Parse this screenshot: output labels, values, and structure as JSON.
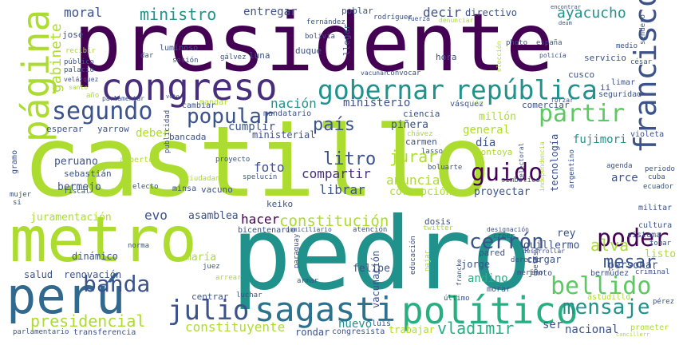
{
  "palette": {
    "dark_purple": "#440154",
    "purple": "#472d7b",
    "indigo": "#3b528b",
    "blue": "#2c728e",
    "teal": "#21918c",
    "sea": "#28ae80",
    "green": "#5ec962",
    "lime": "#addc30",
    "yellow": "#fde725"
  },
  "words": [
    {
      "text": "castillo",
      "color": "#addc30"
    },
    {
      "text": "presidente",
      "color": "#440154"
    },
    {
      "text": "pedro",
      "color": "#21918c"
    },
    {
      "text": "metro",
      "color": "#addc30"
    },
    {
      "text": "congreso",
      "color": "#472d7b"
    },
    {
      "text": "perú",
      "color": "#31688e"
    },
    {
      "text": "político",
      "color": "#28ae80"
    },
    {
      "text": "sagasti",
      "color": "#2c728e"
    },
    {
      "text": "página",
      "color": "#addc30"
    },
    {
      "text": "gobernar",
      "color": "#21918c"
    },
    {
      "text": "república",
      "color": "#21918c"
    },
    {
      "text": "francisco",
      "color": "#3b528b"
    },
    {
      "text": "segundo",
      "color": "#3b528b"
    },
    {
      "text": "bellido",
      "color": "#5ec962"
    },
    {
      "text": "poder",
      "color": "#440154"
    },
    {
      "text": "guido",
      "color": "#440154"
    },
    {
      "text": "partir",
      "color": "#5ec962"
    },
    {
      "text": "popular",
      "color": "#3b528b"
    },
    {
      "text": "banda",
      "color": "#3b528b"
    },
    {
      "text": "julio",
      "color": "#3b528b"
    },
    {
      "text": "mensaje",
      "color": "#21918c"
    },
    {
      "text": "cerrón",
      "color": "#3b528b"
    },
    {
      "text": "presidencial",
      "color": "#addc30"
    },
    {
      "text": "país",
      "color": "#3b528b"
    },
    {
      "text": "litro",
      "color": "#3b528b"
    },
    {
      "text": "mesar",
      "color": "#3b528b"
    },
    {
      "text": "vladimir",
      "color": "#28ae80"
    },
    {
      "text": "gabinete",
      "color": "#addc30"
    },
    {
      "text": "constitución",
      "color": "#addc30"
    },
    {
      "text": "alva",
      "color": "#addc30"
    },
    {
      "text": "jurar",
      "color": "#addc30"
    },
    {
      "text": "constituyente",
      "color": "#addc30"
    },
    {
      "text": "ministro",
      "color": "#21918c"
    },
    {
      "text": "moral",
      "color": "#3b528b"
    },
    {
      "text": "ayacucho",
      "color": "#21918c"
    },
    {
      "text": "decir",
      "color": "#3b528b"
    },
    {
      "text": "entregar",
      "color": "#3b528b"
    },
    {
      "text": "nación",
      "color": "#21918c"
    },
    {
      "text": "ministerio",
      "color": "#3b528b"
    },
    {
      "text": "compartir",
      "color": "#472d7b"
    },
    {
      "text": "librar",
      "color": "#3b528b"
    },
    {
      "text": "anunciar",
      "color": "#addc30"
    },
    {
      "text": "foto",
      "color": "#3b528b"
    },
    {
      "text": "hacer",
      "color": "#440154"
    },
    {
      "text": "evo",
      "color": "#3b528b"
    },
    {
      "text": "nacional",
      "color": "#3b528b"
    },
    {
      "text": "andino",
      "color": "#28ae80"
    },
    {
      "text": "fujimori",
      "color": "#21918c"
    },
    {
      "text": "general",
      "color": "#addc30"
    },
    {
      "text": "tecnología",
      "color": "#3b528b"
    },
    {
      "text": "juramentación",
      "color": "#addc30"
    },
    {
      "text": "peruano",
      "color": "#3b528b"
    },
    {
      "text": "bermejo",
      "color": "#3b528b"
    },
    {
      "text": "asamblea",
      "color": "#3b528b"
    },
    {
      "text": "nuevo",
      "color": "#21918c"
    },
    {
      "text": "trabajar",
      "color": "#addc30"
    },
    {
      "text": "rondar",
      "color": "#3b528b"
    },
    {
      "text": "corrupción",
      "color": "#addc30"
    },
    {
      "text": "proyectar",
      "color": "#3b528b"
    },
    {
      "text": "arce",
      "color": "#3b528b"
    },
    {
      "text": "día",
      "color": "#3b528b"
    },
    {
      "text": "cumplir",
      "color": "#3b528b"
    },
    {
      "text": "deber",
      "color": "#addc30"
    },
    {
      "text": "personar",
      "color": "#3b528b"
    },
    {
      "text": "guillermo",
      "color": "#3b528b"
    },
    {
      "text": "ser",
      "color": "#3b528b"
    },
    {
      "text": "cargar",
      "color": "#3b528b"
    },
    {
      "text": "rey",
      "color": "#3b528b"
    },
    {
      "text": "listo",
      "color": "#addc30"
    },
    {
      "text": "prometer",
      "color": "#addc30"
    },
    {
      "text": "salud",
      "color": "#3b528b"
    },
    {
      "text": "renovación",
      "color": "#3b528b"
    },
    {
      "text": "maría",
      "color": "#addc30"
    },
    {
      "text": "dinámico",
      "color": "#3b528b"
    },
    {
      "text": "felipe",
      "color": "#3b528b"
    },
    {
      "text": "jorge",
      "color": "#3b528b"
    },
    {
      "text": "luis",
      "color": "#3b528b"
    },
    {
      "text": "congresista",
      "color": "#3b528b"
    },
    {
      "text": "millón",
      "color": "#addc30"
    },
    {
      "text": "piñera",
      "color": "#3b528b"
    },
    {
      "text": "ciencia",
      "color": "#3b528b"
    },
    {
      "text": "carmen",
      "color": "#3b528b"
    },
    {
      "text": "montoya",
      "color": "#addc30"
    },
    {
      "text": "dosis",
      "color": "#3b528b"
    },
    {
      "text": "ministerial",
      "color": "#3b528b"
    },
    {
      "text": "bancada",
      "color": "#3b528b"
    },
    {
      "text": "yarrow",
      "color": "#3b528b"
    },
    {
      "text": "esperar",
      "color": "#3b528b"
    },
    {
      "text": "sebastián",
      "color": "#3b528b"
    },
    {
      "text": "keiko",
      "color": "#3b528b"
    },
    {
      "text": "vacuno",
      "color": "#3b528b"
    },
    {
      "text": "minsa",
      "color": "#3b528b"
    },
    {
      "text": "directivo",
      "color": "#3b528b"
    },
    {
      "text": "cusco",
      "color": "#3b528b"
    },
    {
      "text": "servicio",
      "color": "#3b528b"
    },
    {
      "text": "seguridad",
      "color": "#3b528b"
    },
    {
      "text": "limar",
      "color": "#3b528b"
    },
    {
      "text": "comerciar",
      "color": "#3b528b"
    },
    {
      "text": "hora",
      "color": "#3b528b"
    },
    {
      "text": "vásquez",
      "color": "#3b528b"
    },
    {
      "text": "duque",
      "color": "#3b528b"
    },
    {
      "text": "luna",
      "color": "#3b528b"
    },
    {
      "text": "josé",
      "color": "#3b528b"
    },
    {
      "text": "poblar",
      "color": "#3b528b"
    },
    {
      "text": "militar",
      "color": "#3b528b"
    },
    {
      "text": "cultura",
      "color": "#3b528b"
    },
    {
      "text": "bicentenario",
      "color": "#3b528b"
    },
    {
      "text": "pared",
      "color": "#3b528b"
    },
    {
      "text": "junto",
      "color": "#3b528b"
    },
    {
      "text": "astudillo",
      "color": "#addc30"
    },
    {
      "text": "llegar",
      "color": "#3b528b"
    },
    {
      "text": "alberto",
      "color": "#addc30"
    },
    {
      "text": "gramo",
      "color": "#3b528b"
    },
    {
      "text": "mandar",
      "color": "#addc30"
    },
    {
      "text": "cambiar",
      "color": "#3b528b"
    },
    {
      "text": "mandatario",
      "color": "#3b528b"
    },
    {
      "text": "ii",
      "color": "#3b528b"
    },
    {
      "text": "ecuador",
      "color": "#3b528b"
    },
    {
      "text": "argentino",
      "color": "#3b528b"
    },
    {
      "text": "violeta",
      "color": "#3b528b"
    },
    {
      "text": "agenda",
      "color": "#3b528b"
    },
    {
      "text": "periodo",
      "color": "#3b528b"
    },
    {
      "text": "cuba",
      "color": "#3b528b"
    },
    {
      "text": "sistema",
      "color": "#3b528b"
    },
    {
      "text": "tomar",
      "color": "#3b528b"
    },
    {
      "text": "criminal",
      "color": "#3b528b"
    },
    {
      "text": "bermúdez",
      "color": "#3b528b"
    },
    {
      "text": "pérez",
      "color": "#3b528b"
    },
    {
      "text": "desarrollar",
      "color": "#3b528b"
    },
    {
      "text": "creer",
      "color": "#3b528b"
    },
    {
      "text": "derecho",
      "color": "#3b528b"
    },
    {
      "text": "merino",
      "color": "#3b528b"
    },
    {
      "text": "francke",
      "color": "#3b528b"
    },
    {
      "text": "último",
      "color": "#3b528b"
    },
    {
      "text": "morar",
      "color": "#3b528b"
    },
    {
      "text": "armar",
      "color": "#3b528b"
    },
    {
      "text": "luchar",
      "color": "#3b528b"
    },
    {
      "text": "centrar",
      "color": "#3b528b"
    },
    {
      "text": "arrear",
      "color": "#addc30"
    },
    {
      "text": "juez",
      "color": "#3b528b"
    },
    {
      "text": "norma",
      "color": "#3b528b"
    },
    {
      "text": "parlamentario",
      "color": "#3b528b"
    },
    {
      "text": "transferencia",
      "color": "#3b528b"
    },
    {
      "text": "mujer",
      "color": "#3b528b"
    },
    {
      "text": "si",
      "color": "#3b528b"
    },
    {
      "text": "fiscal",
      "color": "#3b528b"
    },
    {
      "text": "electo",
      "color": "#3b528b"
    },
    {
      "text": "ciudadano",
      "color": "#addc30"
    },
    {
      "text": "proyecto",
      "color": "#3b528b"
    },
    {
      "text": "publicidad",
      "color": "#3b528b"
    },
    {
      "text": "spelucín",
      "color": "#3b528b"
    },
    {
      "text": "lasso",
      "color": "#3b528b"
    },
    {
      "text": "boluarte",
      "color": "#3b528b"
    },
    {
      "text": "simbólico",
      "color": "#3b528b"
    },
    {
      "text": "independencia",
      "color": "#addc30"
    },
    {
      "text": "electoral",
      "color": "#3b528b"
    },
    {
      "text": "chávez",
      "color": "#addc30"
    },
    {
      "text": "designación",
      "color": "#3b528b"
    },
    {
      "text": "twitter",
      "color": "#addc30"
    },
    {
      "text": "atención",
      "color": "#3b528b"
    },
    {
      "text": "domiciliario",
      "color": "#3b528b"
    },
    {
      "text": "paraguay",
      "color": "#3b528b"
    },
    {
      "text": "educación",
      "color": "#3b528b"
    },
    {
      "text": "najar",
      "color": "#addc30"
    },
    {
      "text": "betssy",
      "color": "#3b528b"
    },
    {
      "text": "vacunación",
      "color": "#3b528b"
    },
    {
      "text": "fernández",
      "color": "#3b528b"
    },
    {
      "text": "rodríguez",
      "color": "#3b528b"
    },
    {
      "text": "fuerza",
      "color": "#3b528b"
    },
    {
      "text": "denunciar",
      "color": "#addc30"
    },
    {
      "text": "encontrar",
      "color": "#3b528b"
    },
    {
      "text": "deum",
      "color": "#3b528b"
    },
    {
      "text": "españa",
      "color": "#3b528b"
    },
    {
      "text": "photo",
      "color": "#3b528b"
    },
    {
      "text": "elección",
      "color": "#addc30"
    },
    {
      "text": "policía",
      "color": "#3b528b"
    },
    {
      "text": "medio",
      "color": "#3b528b"
    },
    {
      "text": "césar",
      "color": "#3b528b"
    },
    {
      "text": "sendero",
      "color": "#3b528b"
    },
    {
      "text": "vacunar",
      "color": "#3b528b"
    },
    {
      "text": "convocar",
      "color": "#3b528b"
    },
    {
      "text": "bolivia",
      "color": "#3b528b"
    },
    {
      "text": "luminoso",
      "color": "#3b528b"
    },
    {
      "text": "sesión",
      "color": "#3b528b"
    },
    {
      "text": "gálvez",
      "color": "#3b528b"
    },
    {
      "text": "dar",
      "color": "#3b528b"
    },
    {
      "text": "recibir",
      "color": "#addc30"
    },
    {
      "text": "público",
      "color": "#3b528b"
    },
    {
      "text": "palacio",
      "color": "#3b528b"
    },
    {
      "text": "velázquez",
      "color": "#3b528b"
    },
    {
      "text": "santo",
      "color": "#addc30"
    },
    {
      "text": "año",
      "color": "#addc30"
    },
    {
      "text": "parlamentar",
      "color": "#3b528b"
    },
    {
      "text": "voto",
      "color": "#3b528b"
    },
    {
      "text": "niño",
      "color": "#addc30"
    },
    {
      "text": "forzar",
      "color": "#3b528b"
    },
    {
      "text": "cancillerr",
      "color": "#addc30"
    }
  ]
}
